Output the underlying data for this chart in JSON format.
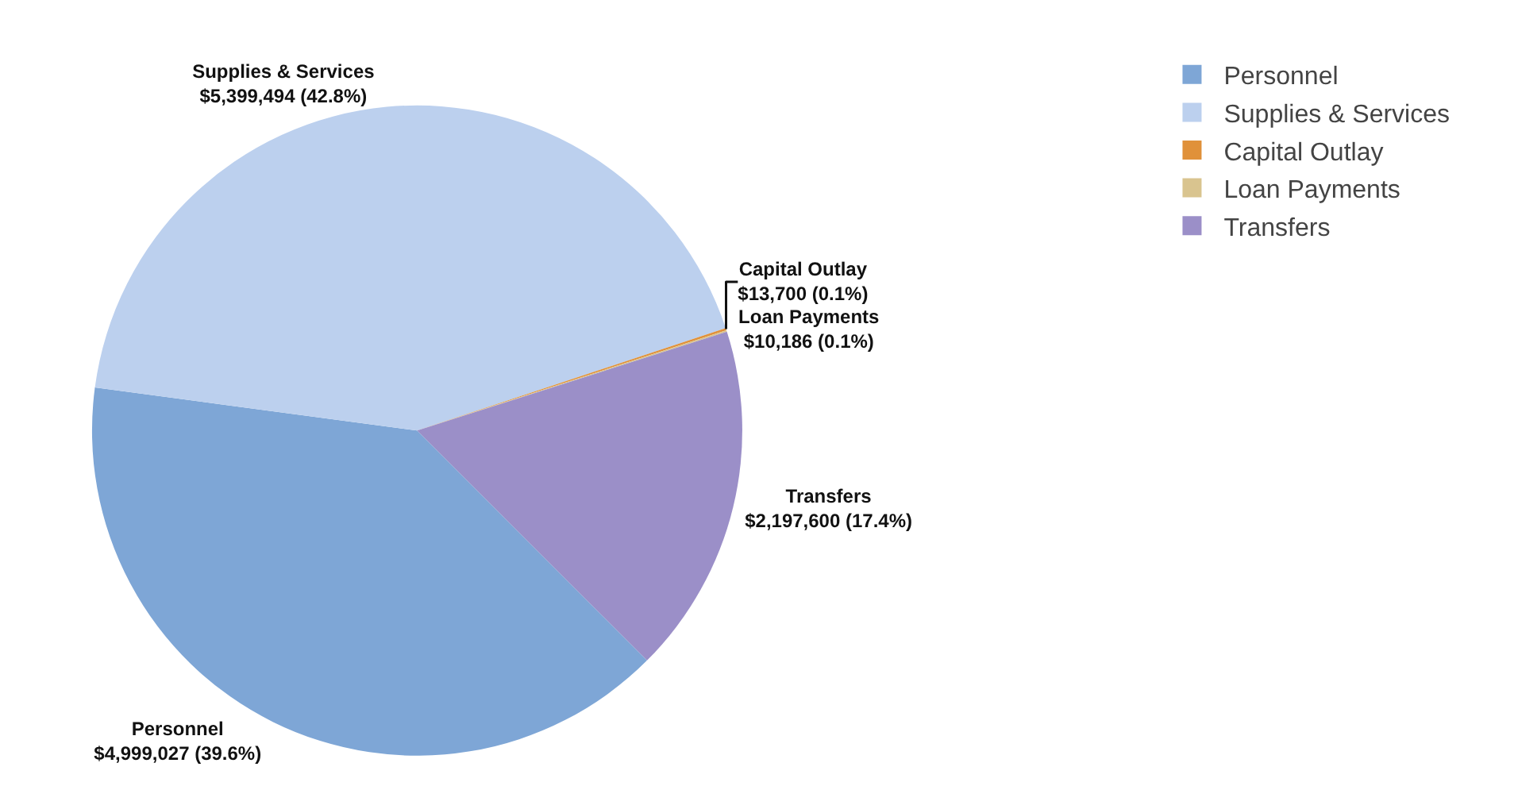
{
  "chart_data": {
    "type": "pie",
    "categories": [
      "Personnel",
      "Supplies & Services",
      "Capital Outlay",
      "Loan Payments",
      "Transfers"
    ],
    "values": [
      4999027,
      5399494,
      13700,
      10186,
      2197600
    ],
    "value_labels": [
      "$4,999,027 (39.6%)",
      "$5,399,494 (42.8%)",
      "$13,700 (0.1%)",
      "$10,186 (0.1%)",
      "$2,197,600 (17.4%)"
    ],
    "colors": [
      "#7ea6d6",
      "#bcd0ee",
      "#e0913a",
      "#d9c48f",
      "#9b8fc8"
    ],
    "legend": "top right"
  }
}
